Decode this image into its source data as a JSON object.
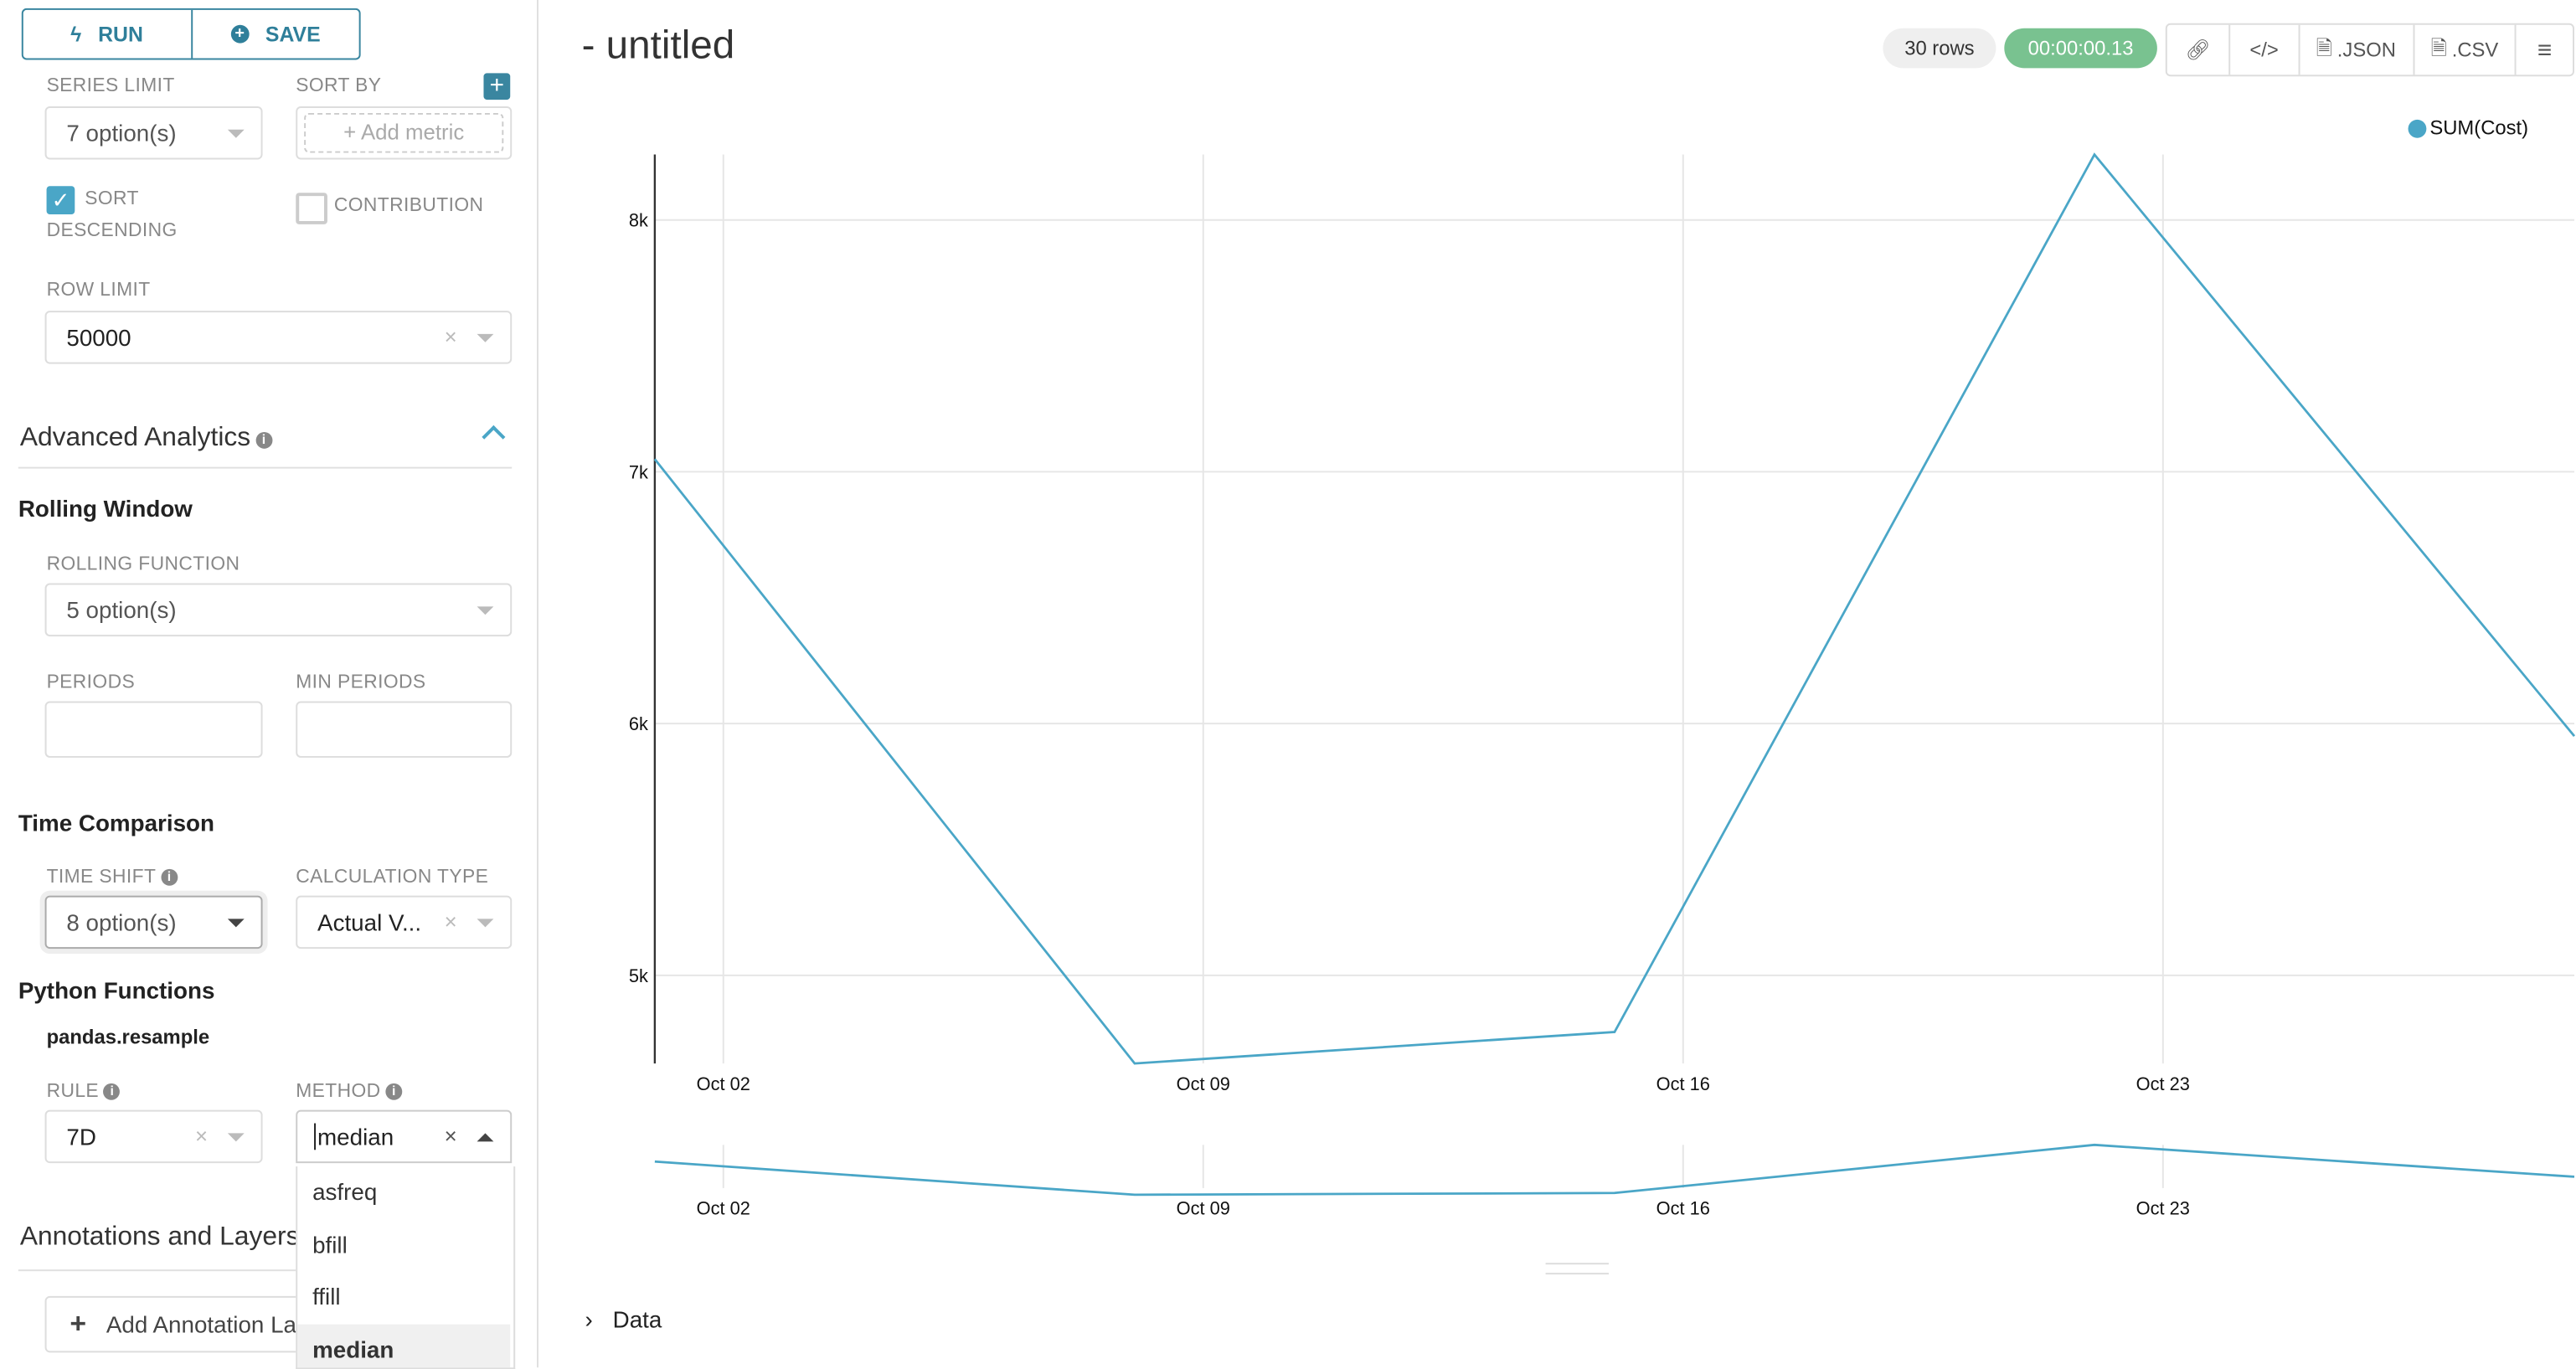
{
  "toolbar": {
    "run": "RUN",
    "save": "SAVE"
  },
  "query": {
    "series_limit": {
      "label": "SERIES LIMIT",
      "value": "7 option(s)"
    },
    "sort_by": {
      "label": "SORT BY",
      "placeholder": "Add metric"
    },
    "sort_descending": {
      "label1": "SORT",
      "label2": "DESCENDING",
      "checked": true
    },
    "contribution": {
      "label": "CONTRIBUTION",
      "checked": false
    },
    "row_limit": {
      "label": "ROW LIMIT",
      "value": "50000"
    }
  },
  "advanced": {
    "title": "Advanced Analytics",
    "rolling_title": "Rolling Window",
    "rolling_function": {
      "label": "ROLLING FUNCTION",
      "value": "5 option(s)"
    },
    "periods": {
      "label": "PERIODS",
      "value": ""
    },
    "min_periods": {
      "label": "MIN PERIODS",
      "value": ""
    },
    "time_comparison_title": "Time Comparison",
    "time_shift": {
      "label": "TIME SHIFT",
      "value": "8 option(s)"
    },
    "calculation_type": {
      "label": "CALCULATION TYPE",
      "value": "Actual V..."
    },
    "python_title": "Python Functions",
    "resample": "pandas.resample",
    "rule": {
      "label": "RULE",
      "value": "7D"
    },
    "method": {
      "label": "METHOD",
      "value": "median",
      "options": [
        "asfreq",
        "bfill",
        "ffill",
        "median"
      ],
      "highlighted": "median"
    }
  },
  "annotations": {
    "title": "Annotations and Layers",
    "add": "Add Annotation Layer"
  },
  "header": {
    "title": "- untitled",
    "rows": "30 rows",
    "timer": "00:00:00.13",
    "json": ".JSON",
    "csv": ".CSV"
  },
  "data_section": {
    "label": "Data"
  },
  "colors": {
    "accent": "#3a86a0",
    "line": "#4aa6c7",
    "timer": "#79c290"
  },
  "chart_data": {
    "type": "line",
    "legend": "top-right",
    "series": [
      {
        "name": "SUM(Cost)",
        "x": [
          "Oct 01",
          "Oct 08",
          "Oct 15",
          "Oct 22",
          "Oct 29"
        ],
        "values": [
          7050,
          4650,
          4775,
          8260,
          5950
        ]
      }
    ],
    "x_ticks": [
      "Oct 02",
      "Oct 09",
      "Oct 16",
      "Oct 23"
    ],
    "y_ticks": [
      "5k",
      "6k",
      "7k",
      "8k"
    ],
    "ylim": [
      4650,
      8260
    ],
    "grid": true,
    "brush": true
  }
}
